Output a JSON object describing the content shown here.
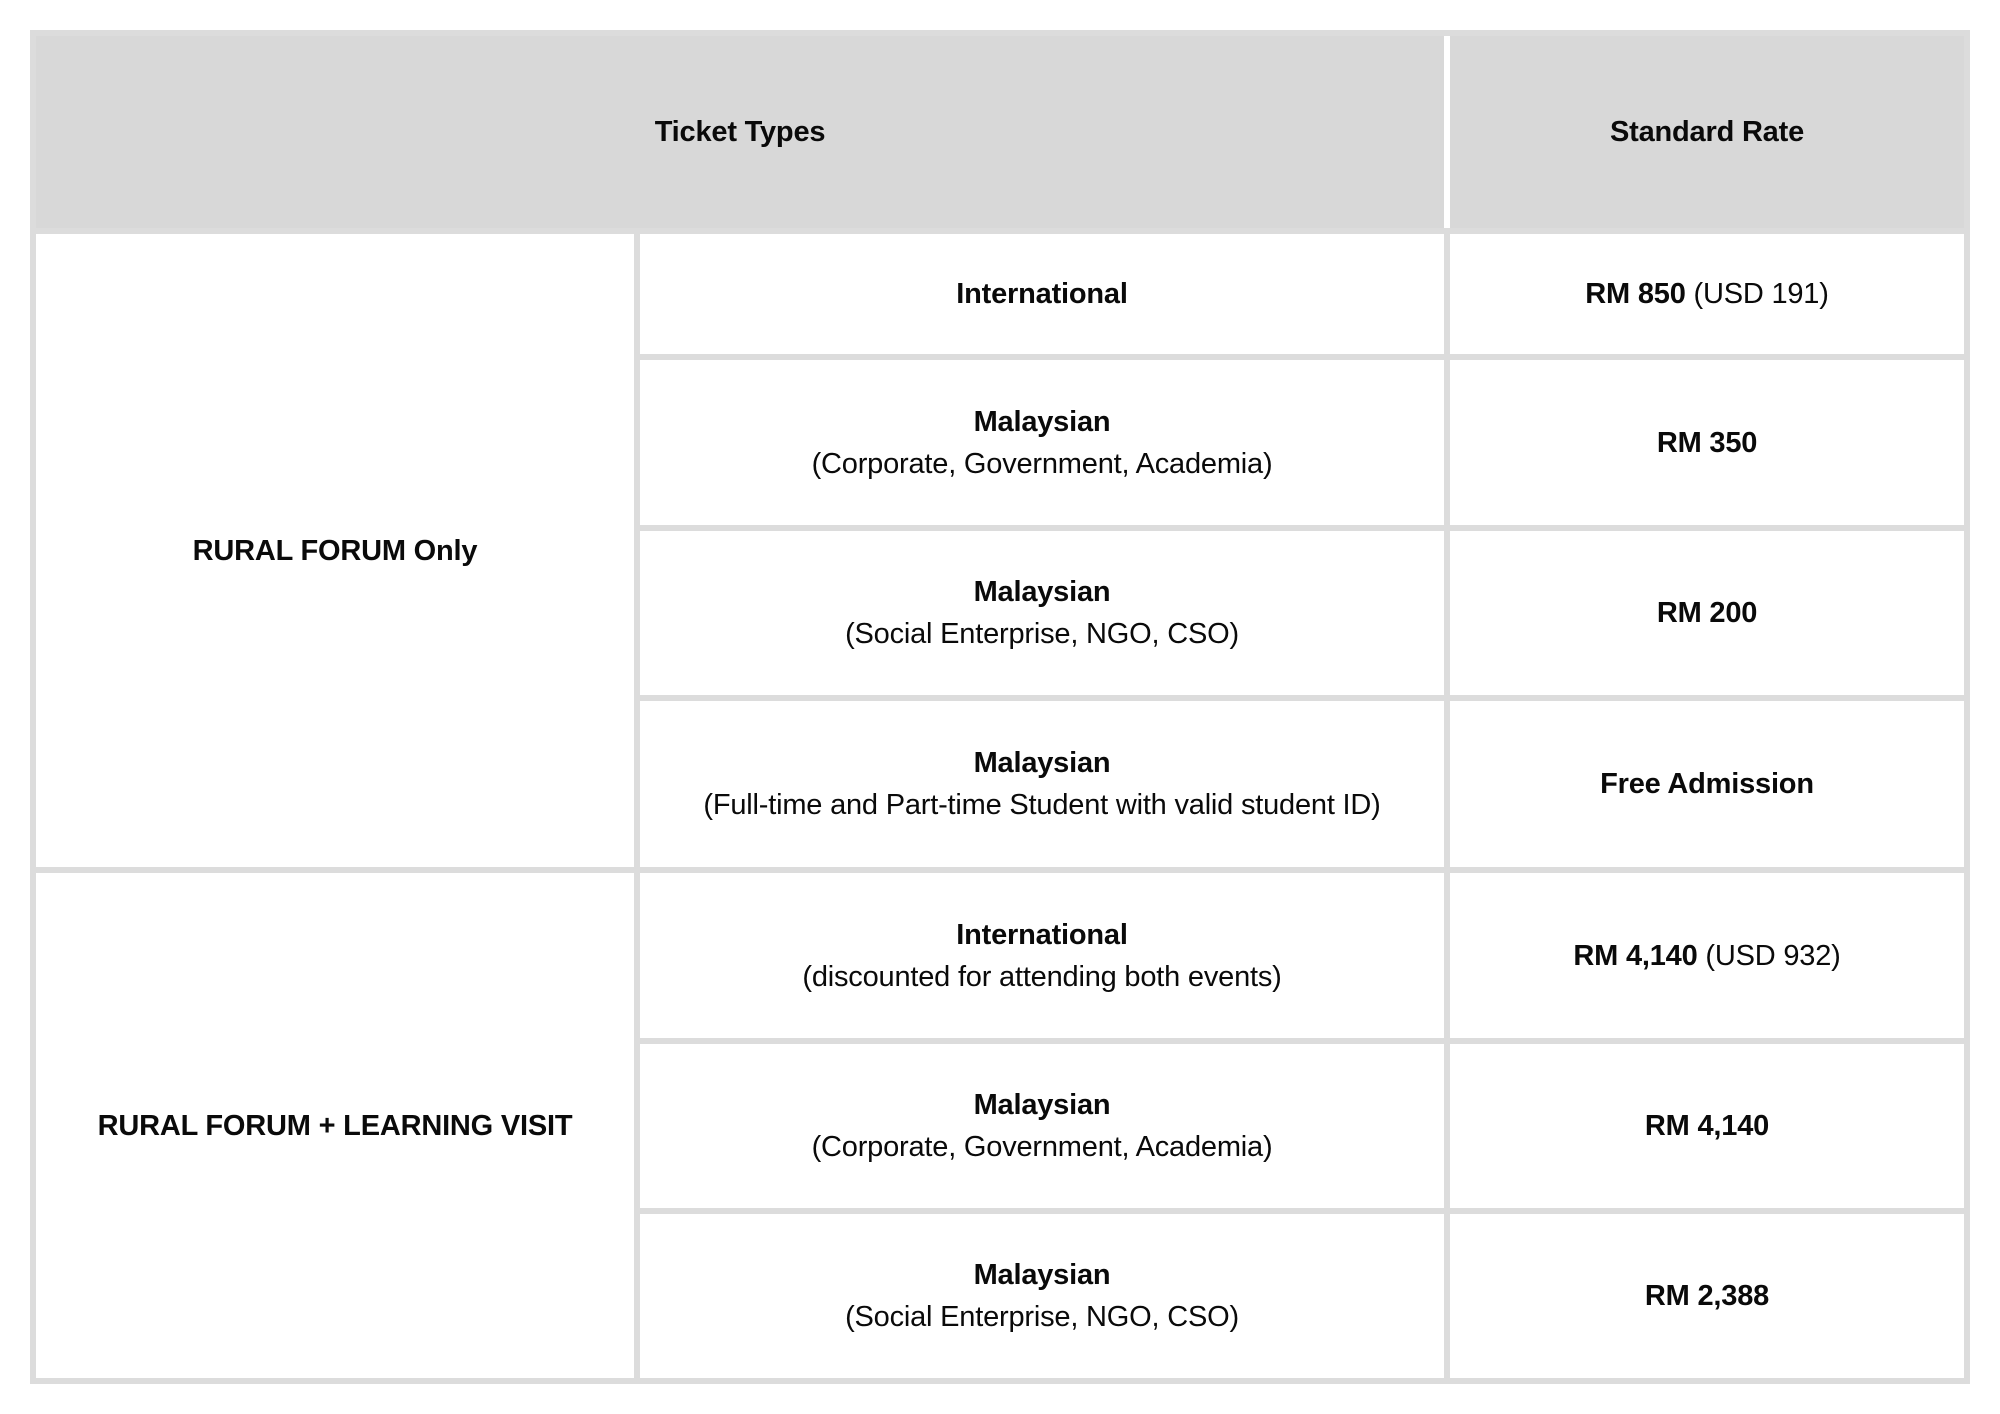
{
  "table": {
    "colors": {
      "header_bg": "#d8d8d8",
      "border": "#dcdcdc",
      "cell_bg": "#ffffff",
      "text": "#0a0a0a"
    },
    "header": {
      "ticket_types": "Ticket Types",
      "standard_rate": "Standard Rate"
    },
    "groups": [
      {
        "label": "RURAL FORUM Only",
        "rows": [
          {
            "type_main": "International",
            "type_sub": "",
            "rate_main": "RM 850",
            "rate_sub": "(USD 191)"
          },
          {
            "type_main": "Malaysian",
            "type_sub": "(Corporate, Government, Academia)",
            "rate_main": "RM 350",
            "rate_sub": ""
          },
          {
            "type_main": "Malaysian",
            "type_sub": "(Social Enterprise, NGO, CSO)",
            "rate_main": "RM 200",
            "rate_sub": ""
          },
          {
            "type_main": "Malaysian",
            "type_sub": "(Full-time and Part-time Student with valid student ID)",
            "rate_main": "Free Admission",
            "rate_sub": ""
          }
        ]
      },
      {
        "label": "RURAL FORUM + LEARNING VISIT",
        "rows": [
          {
            "type_main": "International",
            "type_sub": "(discounted for attending both events)",
            "rate_main": "RM 4,140",
            "rate_sub": "(USD 932)"
          },
          {
            "type_main": "Malaysian",
            "type_sub": "(Corporate, Government, Academia)",
            "rate_main": "RM 4,140",
            "rate_sub": ""
          },
          {
            "type_main": "Malaysian",
            "type_sub": "(Social Enterprise, NGO, CSO)",
            "rate_main": "RM 2,388",
            "rate_sub": ""
          }
        ]
      }
    ]
  }
}
